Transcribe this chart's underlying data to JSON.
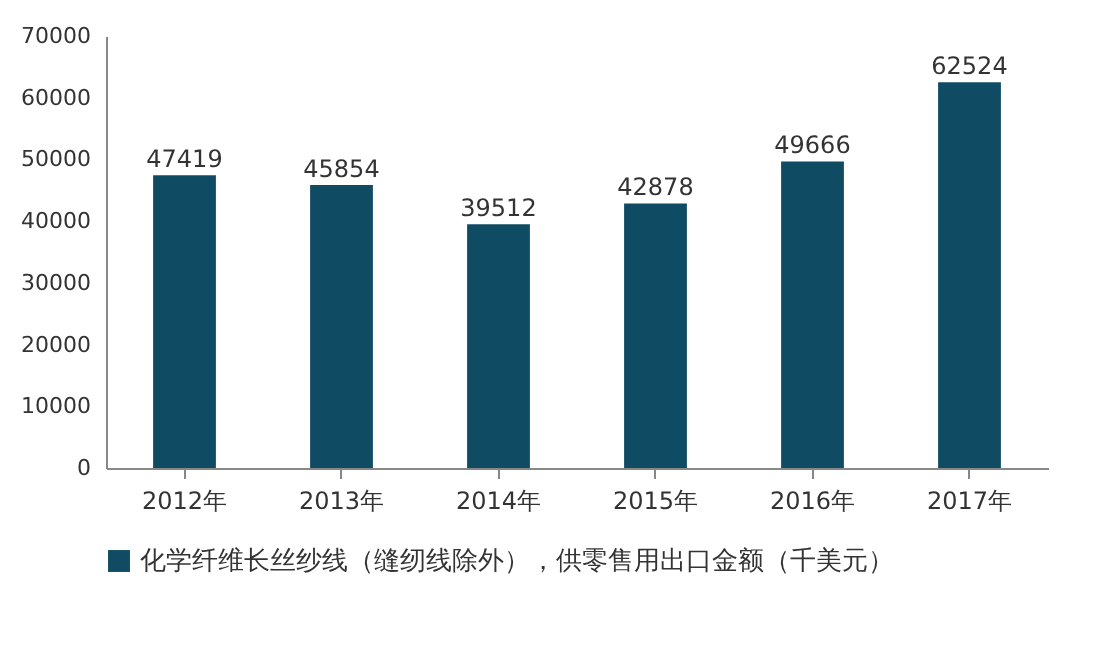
{
  "chart_data": {
    "type": "bar",
    "categories": [
      "2012年",
      "2013年",
      "2014年",
      "2015年",
      "2016年",
      "2017年"
    ],
    "series": [
      {
        "name": "化学纤维长丝纱线（缝纫线除外），供零售用出口金额（千美元）",
        "color": "#0f4c63",
        "values": [
          47419,
          45854,
          39512,
          42878,
          49666,
          62524
        ]
      }
    ],
    "ylim": [
      0,
      70000
    ],
    "yticks": [
      0,
      10000,
      20000,
      30000,
      40000,
      50000,
      60000,
      70000
    ],
    "grid": false,
    "legend": "bottom",
    "data_labels": true
  }
}
